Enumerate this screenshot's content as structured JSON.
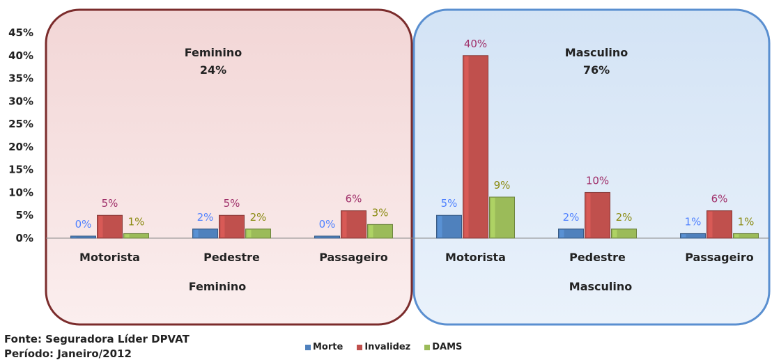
{
  "chart_data": {
    "type": "bar",
    "y_ticks": [
      "45%",
      "40%",
      "35%",
      "30%",
      "25%",
      "20%",
      "15%",
      "10%",
      "5%",
      "0%"
    ],
    "ylim": [
      0,
      45
    ],
    "groups": [
      {
        "label": "Feminino",
        "title": "Feminino",
        "share": "24%",
        "categories": [
          "Motorista",
          "Pedestre",
          "Passageiro"
        ],
        "series": [
          {
            "name": "Morte",
            "values": [
              0,
              2,
              0
            ],
            "labels": [
              "0%",
              "2%",
              "0%"
            ]
          },
          {
            "name": "Invalidez",
            "values": [
              5,
              5,
              6
            ],
            "labels": [
              "5%",
              "5%",
              "6%"
            ]
          },
          {
            "name": "DAMS",
            "values": [
              1,
              2,
              3
            ],
            "labels": [
              "1%",
              "2%",
              "3%"
            ]
          }
        ]
      },
      {
        "label": "Masculino",
        "title": "Masculino",
        "share": "76%",
        "categories": [
          "Motorista",
          "Pedestre",
          "Passageiro"
        ],
        "series": [
          {
            "name": "Morte",
            "values": [
              5,
              2,
              1
            ],
            "labels": [
              "5%",
              "2%",
              "1%"
            ]
          },
          {
            "name": "Invalidez",
            "values": [
              40,
              10,
              6
            ],
            "labels": [
              "40%",
              "10%",
              "6%"
            ]
          },
          {
            "name": "DAMS",
            "values": [
              9,
              2,
              1
            ],
            "labels": [
              "9%",
              "2%",
              "1%"
            ]
          }
        ]
      }
    ],
    "legend": [
      "Morte",
      "Invalidez",
      "DAMS"
    ],
    "legend_position": "bottom"
  },
  "colors": {
    "Morte": "#4f81bd",
    "Invalidez": "#c0504d",
    "DAMS": "#9bbb59",
    "Morte_label": "#4f81ff",
    "Invalidez_label": "#a0306a",
    "DAMS_label": "#8a8a10",
    "feminino_panel": "#f6e2e2",
    "feminino_border": "#7b2c2c",
    "masculino_panel": "#dde9f6",
    "masculino_border": "#5a8fd0"
  },
  "source": {
    "line1": "Fonte: Seguradora  Líder DPVAT",
    "line2": "Período: Janeiro/2012"
  }
}
